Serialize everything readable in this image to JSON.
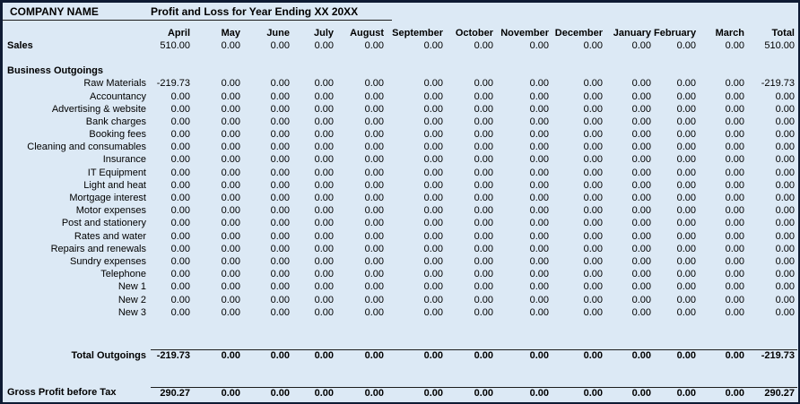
{
  "window": {
    "background_color": "#DCE9F5",
    "frame_color": "#0E1B33"
  },
  "header": {
    "company": "COMPANY NAME",
    "title": "Profit and Loss for Year Ending XX 20XX"
  },
  "columns": [
    "April",
    "May",
    "June",
    "July",
    "August",
    "September",
    "October",
    "November",
    "December",
    "January",
    "February",
    "March",
    "Total"
  ],
  "rows": [
    {
      "type": "data",
      "label": "Sales",
      "label_align": "left",
      "label_bold": true,
      "values": [
        "510.00",
        "0.00",
        "0.00",
        "0.00",
        "0.00",
        "0.00",
        "0.00",
        "0.00",
        "0.00",
        "0.00",
        "0.00",
        "0.00",
        "510.00"
      ]
    },
    {
      "type": "blank",
      "label": "",
      "values": [
        "",
        "",
        "",
        "",
        "",
        "",
        "",
        "",
        "",
        "",
        "",
        "",
        ""
      ]
    },
    {
      "type": "section",
      "label": "Business Outgoings",
      "label_align": "left",
      "label_bold": true,
      "values": [
        "",
        "",
        "",
        "",
        "",
        "",
        "",
        "",
        "",
        "",
        "",
        "",
        ""
      ]
    },
    {
      "type": "data",
      "label": "Raw Materials",
      "values": [
        "-219.73",
        "0.00",
        "0.00",
        "0.00",
        "0.00",
        "0.00",
        "0.00",
        "0.00",
        "0.00",
        "0.00",
        "0.00",
        "0.00",
        "-219.73"
      ]
    },
    {
      "type": "data",
      "label": "Accountancy",
      "values": [
        "0.00",
        "0.00",
        "0.00",
        "0.00",
        "0.00",
        "0.00",
        "0.00",
        "0.00",
        "0.00",
        "0.00",
        "0.00",
        "0.00",
        "0.00"
      ]
    },
    {
      "type": "data",
      "label": "Advertising & website",
      "values": [
        "0.00",
        "0.00",
        "0.00",
        "0.00",
        "0.00",
        "0.00",
        "0.00",
        "0.00",
        "0.00",
        "0.00",
        "0.00",
        "0.00",
        "0.00"
      ]
    },
    {
      "type": "data",
      "label": "Bank charges",
      "values": [
        "0.00",
        "0.00",
        "0.00",
        "0.00",
        "0.00",
        "0.00",
        "0.00",
        "0.00",
        "0.00",
        "0.00",
        "0.00",
        "0.00",
        "0.00"
      ]
    },
    {
      "type": "data",
      "label": "Booking fees",
      "values": [
        "0.00",
        "0.00",
        "0.00",
        "0.00",
        "0.00",
        "0.00",
        "0.00",
        "0.00",
        "0.00",
        "0.00",
        "0.00",
        "0.00",
        "0.00"
      ]
    },
    {
      "type": "data",
      "label": "Cleaning and consumables",
      "values": [
        "0.00",
        "0.00",
        "0.00",
        "0.00",
        "0.00",
        "0.00",
        "0.00",
        "0.00",
        "0.00",
        "0.00",
        "0.00",
        "0.00",
        "0.00"
      ]
    },
    {
      "type": "data",
      "label": "Insurance",
      "values": [
        "0.00",
        "0.00",
        "0.00",
        "0.00",
        "0.00",
        "0.00",
        "0.00",
        "0.00",
        "0.00",
        "0.00",
        "0.00",
        "0.00",
        "0.00"
      ]
    },
    {
      "type": "data",
      "label": "IT Equipment",
      "values": [
        "0.00",
        "0.00",
        "0.00",
        "0.00",
        "0.00",
        "0.00",
        "0.00",
        "0.00",
        "0.00",
        "0.00",
        "0.00",
        "0.00",
        "0.00"
      ]
    },
    {
      "type": "data",
      "label": "Light and heat",
      "values": [
        "0.00",
        "0.00",
        "0.00",
        "0.00",
        "0.00",
        "0.00",
        "0.00",
        "0.00",
        "0.00",
        "0.00",
        "0.00",
        "0.00",
        "0.00"
      ]
    },
    {
      "type": "data",
      "label": "Mortgage interest",
      "values": [
        "0.00",
        "0.00",
        "0.00",
        "0.00",
        "0.00",
        "0.00",
        "0.00",
        "0.00",
        "0.00",
        "0.00",
        "0.00",
        "0.00",
        "0.00"
      ]
    },
    {
      "type": "data",
      "label": "Motor expenses",
      "values": [
        "0.00",
        "0.00",
        "0.00",
        "0.00",
        "0.00",
        "0.00",
        "0.00",
        "0.00",
        "0.00",
        "0.00",
        "0.00",
        "0.00",
        "0.00"
      ]
    },
    {
      "type": "data",
      "label": "Post and stationery",
      "values": [
        "0.00",
        "0.00",
        "0.00",
        "0.00",
        "0.00",
        "0.00",
        "0.00",
        "0.00",
        "0.00",
        "0.00",
        "0.00",
        "0.00",
        "0.00"
      ]
    },
    {
      "type": "data",
      "label": "Rates and water",
      "values": [
        "0.00",
        "0.00",
        "0.00",
        "0.00",
        "0.00",
        "0.00",
        "0.00",
        "0.00",
        "0.00",
        "0.00",
        "0.00",
        "0.00",
        "0.00"
      ]
    },
    {
      "type": "data",
      "label": "Repairs and renewals",
      "values": [
        "0.00",
        "0.00",
        "0.00",
        "0.00",
        "0.00",
        "0.00",
        "0.00",
        "0.00",
        "0.00",
        "0.00",
        "0.00",
        "0.00",
        "0.00"
      ]
    },
    {
      "type": "data",
      "label": "Sundry expenses",
      "values": [
        "0.00",
        "0.00",
        "0.00",
        "0.00",
        "0.00",
        "0.00",
        "0.00",
        "0.00",
        "0.00",
        "0.00",
        "0.00",
        "0.00",
        "0.00"
      ]
    },
    {
      "type": "data",
      "label": "Telephone",
      "values": [
        "0.00",
        "0.00",
        "0.00",
        "0.00",
        "0.00",
        "0.00",
        "0.00",
        "0.00",
        "0.00",
        "0.00",
        "0.00",
        "0.00",
        "0.00"
      ]
    },
    {
      "type": "data",
      "label": "New 1",
      "values": [
        "0.00",
        "0.00",
        "0.00",
        "0.00",
        "0.00",
        "0.00",
        "0.00",
        "0.00",
        "0.00",
        "0.00",
        "0.00",
        "0.00",
        "0.00"
      ]
    },
    {
      "type": "data",
      "label": "New 2",
      "values": [
        "0.00",
        "0.00",
        "0.00",
        "0.00",
        "0.00",
        "0.00",
        "0.00",
        "0.00",
        "0.00",
        "0.00",
        "0.00",
        "0.00",
        "0.00"
      ]
    },
    {
      "type": "data",
      "label": "New 3",
      "values": [
        "0.00",
        "0.00",
        "0.00",
        "0.00",
        "0.00",
        "0.00",
        "0.00",
        "0.00",
        "0.00",
        "0.00",
        "0.00",
        "0.00",
        "0.00"
      ]
    },
    {
      "type": "spacer",
      "height": 34
    },
    {
      "type": "total",
      "label": "Total Outgoings",
      "rule": true,
      "values": [
        "-219.73",
        "0.00",
        "0.00",
        "0.00",
        "0.00",
        "0.00",
        "0.00",
        "0.00",
        "0.00",
        "0.00",
        "0.00",
        "0.00",
        "-219.73"
      ]
    },
    {
      "type": "spacer",
      "height": 27
    },
    {
      "type": "total",
      "label": "Gross Profit before Tax",
      "label_align": "left",
      "rule": true,
      "values": [
        "290.27",
        "0.00",
        "0.00",
        "0.00",
        "0.00",
        "0.00",
        "0.00",
        "0.00",
        "0.00",
        "0.00",
        "0.00",
        "0.00",
        "290.27"
      ]
    }
  ]
}
